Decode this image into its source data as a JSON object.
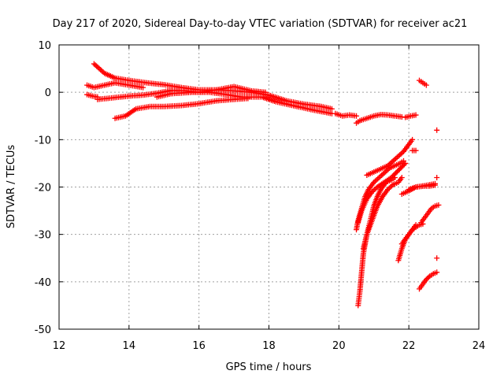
{
  "chart_data": {
    "type": "scatter",
    "title": "Day 217 of 2020, Sidereal Day-to-day VTEC variation (SDTVAR) for receiver ac21",
    "xlabel": "GPS time / hours",
    "ylabel": "SDTVAR / TECUs",
    "xlim": [
      12,
      24
    ],
    "ylim": [
      -50,
      10
    ],
    "xticks": [
      12,
      14,
      16,
      18,
      20,
      22,
      24
    ],
    "yticks": [
      10,
      0,
      -10,
      -20,
      -30,
      -40,
      -50
    ],
    "grid": true,
    "marker": "+",
    "color": "#ff0000",
    "series": [
      {
        "name": "track-1",
        "x": [
          13.0,
          13.3,
          13.6,
          14.0,
          14.5,
          15.0,
          15.5,
          16.0,
          16.5,
          17.0,
          17.5,
          18.0,
          18.5,
          19.0,
          19.5,
          19.8
        ],
        "y": [
          6.0,
          4.0,
          3.0,
          2.5,
          2.0,
          1.6,
          1.0,
          0.5,
          0.5,
          0.3,
          0.0,
          -0.6,
          -1.8,
          -2.5,
          -3.0,
          -3.5
        ]
      },
      {
        "name": "track-2",
        "x": [
          12.8,
          13.0,
          13.3,
          13.6,
          14.0,
          14.4
        ],
        "y": [
          1.5,
          1.0,
          1.5,
          2.0,
          1.5,
          1.0
        ]
      },
      {
        "name": "track-3",
        "x": [
          12.8,
          12.95,
          13.1
        ],
        "y": [
          -0.5,
          -0.8,
          -1.0
        ]
      },
      {
        "name": "track-4",
        "x": [
          13.1,
          13.5,
          14.0,
          14.4,
          14.8,
          15.2,
          15.6,
          16.0,
          16.5,
          17.0,
          17.5,
          17.9
        ],
        "y": [
          -1.5,
          -1.2,
          -0.8,
          -0.6,
          -0.2,
          0.4,
          0.3,
          0.0,
          0.5,
          1.2,
          0.3,
          0.0
        ]
      },
      {
        "name": "track-5",
        "x": [
          13.6,
          13.9,
          14.2,
          14.6,
          15.0,
          15.5,
          16.0,
          16.5,
          17.0,
          17.4
        ],
        "y": [
          -5.5,
          -5.0,
          -3.5,
          -3.0,
          -3.0,
          -2.8,
          -2.4,
          -1.8,
          -1.5,
          -1.3
        ]
      },
      {
        "name": "track-6",
        "x": [
          14.8,
          15.2,
          15.8,
          16.3,
          16.8,
          17.2,
          17.8,
          18.2,
          18.8,
          19.3,
          19.8
        ],
        "y": [
          -1.0,
          -0.3,
          0.0,
          0.0,
          -0.5,
          -1.0,
          -1.0,
          -2.0,
          -3.0,
          -3.8,
          -4.5
        ]
      },
      {
        "name": "track-7",
        "x": [
          19.9,
          20.1,
          20.3,
          20.5
        ],
        "y": [
          -4.5,
          -5.0,
          -4.8,
          -5.0
        ]
      },
      {
        "name": "track-8",
        "x": [
          20.5,
          20.6,
          20.8,
          21.0,
          21.2,
          21.4,
          21.6,
          21.8
        ],
        "y": [
          -6.5,
          -6.0,
          -5.5,
          -5.0,
          -4.7,
          -4.8,
          -5.0,
          -5.2
        ]
      },
      {
        "name": "track-9",
        "x": [
          21.9,
          22.05,
          22.2
        ],
        "y": [
          -5.3,
          -5.0,
          -4.8
        ]
      },
      {
        "name": "track-10",
        "x": [
          22.3,
          22.4,
          22.5
        ],
        "y": [
          2.5,
          2.0,
          1.5
        ]
      },
      {
        "name": "track-11",
        "x": [
          22.1,
          22.2
        ],
        "y": [
          -12.3,
          -12.3
        ]
      },
      {
        "name": "track-12",
        "x": [
          22.8
        ],
        "y": [
          -8.0
        ]
      },
      {
        "name": "track-13",
        "x": [
          20.5,
          20.55,
          20.65,
          20.75,
          20.85,
          21.0,
          21.15,
          21.3,
          21.45,
          21.6,
          21.75,
          21.85
        ],
        "y": [
          -29.0,
          -27.0,
          -24.5,
          -22.0,
          -20.5,
          -19.0,
          -18.0,
          -17.0,
          -16.0,
          -15.5,
          -15.0,
          -14.5
        ]
      },
      {
        "name": "track-14",
        "x": [
          20.55,
          20.65,
          20.8,
          20.95,
          21.1,
          21.3,
          21.5,
          21.7,
          21.9
        ],
        "y": [
          -27.5,
          -25.0,
          -22.5,
          -21.0,
          -20.0,
          -19.0,
          -18.0,
          -16.5,
          -15.0
        ]
      },
      {
        "name": "track-15",
        "x": [
          20.8,
          20.95,
          21.1,
          21.25,
          21.4,
          21.55,
          21.7,
          21.85,
          22.0,
          22.1
        ],
        "y": [
          -17.5,
          -17.0,
          -16.5,
          -16.0,
          -15.5,
          -14.5,
          -13.5,
          -12.5,
          -11.0,
          -10.0
        ]
      },
      {
        "name": "track-16",
        "x": [
          20.55,
          20.6,
          20.65,
          20.7,
          20.8,
          20.9,
          21.0,
          21.1,
          21.2,
          21.35,
          21.5,
          21.6
        ],
        "y": [
          -45.0,
          -42.0,
          -38.0,
          -34.0,
          -30.0,
          -27.0,
          -24.0,
          -22.0,
          -20.5,
          -19.0,
          -18.5,
          -18.0
        ]
      },
      {
        "name": "track-17",
        "x": [
          20.7,
          20.8,
          20.9,
          21.0,
          21.1,
          21.25,
          21.4,
          21.55,
          21.7,
          21.8
        ],
        "y": [
          -33.0,
          -30.0,
          -28.0,
          -26.0,
          -24.0,
          -22.0,
          -20.5,
          -19.5,
          -19.0,
          -18.0
        ]
      },
      {
        "name": "track-18",
        "x": [
          21.7,
          21.8,
          21.9,
          22.0,
          22.1,
          22.2,
          22.3,
          22.4
        ],
        "y": [
          -35.5,
          -33.0,
          -31.0,
          -30.0,
          -29.0,
          -28.5,
          -28.0,
          -27.8
        ]
      },
      {
        "name": "track-19",
        "x": [
          21.8,
          21.9,
          22.0,
          22.1,
          22.2
        ],
        "y": [
          -32.0,
          -31.0,
          -30.0,
          -29.0,
          -28.0
        ]
      },
      {
        "name": "track-20",
        "x": [
          21.8,
          22.0,
          22.2,
          22.4,
          22.6,
          22.75
        ],
        "y": [
          -21.5,
          -20.8,
          -20.0,
          -19.8,
          -19.5,
          -19.3
        ]
      },
      {
        "name": "track-21",
        "x": [
          22.0,
          22.2,
          22.4,
          22.6,
          22.75
        ],
        "y": [
          -20.5,
          -20.0,
          -19.8,
          -19.8,
          -19.6
        ]
      },
      {
        "name": "track-22",
        "x": [
          22.8
        ],
        "y": [
          -18.0
        ]
      },
      {
        "name": "track-23",
        "x": [
          22.35,
          22.45,
          22.55,
          22.65,
          22.75,
          22.85
        ],
        "y": [
          -27.5,
          -26.5,
          -25.5,
          -24.5,
          -24.0,
          -23.8
        ]
      },
      {
        "name": "track-24",
        "x": [
          22.3,
          22.4,
          22.5,
          22.6,
          22.7,
          22.8
        ],
        "y": [
          -41.5,
          -40.5,
          -39.5,
          -38.8,
          -38.3,
          -38.0
        ]
      },
      {
        "name": "track-25",
        "x": [
          22.8
        ],
        "y": [
          -35.0
        ]
      }
    ]
  }
}
